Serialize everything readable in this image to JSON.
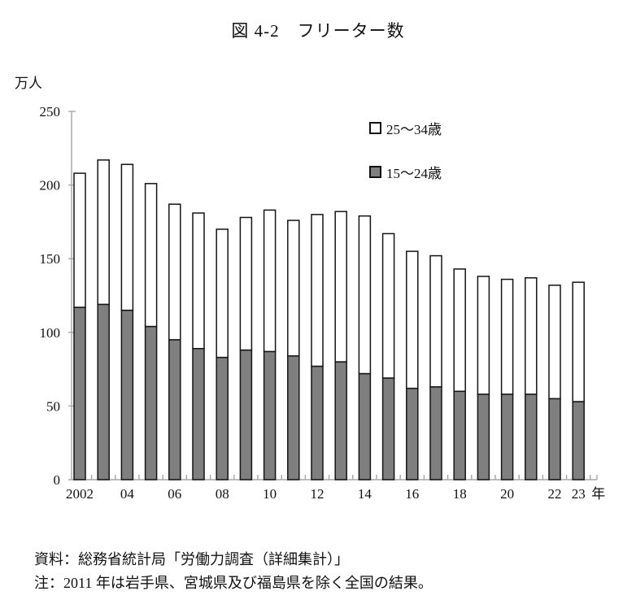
{
  "figure": {
    "title": "図 4-2　フリーター数",
    "y_axis_unit": "万人",
    "source_note": "資料：総務省統計局「労働力調査（詳細集計）」",
    "data_note": "注：2011 年は岩手県、宮城県及び福島県を除く全国の結果。"
  },
  "chart_data": {
    "type": "bar",
    "stacked": true,
    "title": "図 4-2　フリーター数",
    "ylabel": "万人",
    "ylim": [
      0,
      250
    ],
    "y_ticks": [
      0,
      50,
      100,
      150,
      200,
      250
    ],
    "grid": false,
    "legend_position": "top-right-inside",
    "years": [
      2002,
      2003,
      2004,
      2005,
      2006,
      2007,
      2008,
      2009,
      2010,
      2011,
      2012,
      2013,
      2014,
      2015,
      2016,
      2017,
      2018,
      2019,
      2020,
      2021,
      2022,
      2023
    ],
    "x_ticks": [
      {
        "label": "2002",
        "index": 0
      },
      {
        "label": "04",
        "index": 2
      },
      {
        "label": "06",
        "index": 4
      },
      {
        "label": "08",
        "index": 6
      },
      {
        "label": "10",
        "index": 8
      },
      {
        "label": "12",
        "index": 10
      },
      {
        "label": "14",
        "index": 12
      },
      {
        "label": "16",
        "index": 14
      },
      {
        "label": "18",
        "index": 16
      },
      {
        "label": "20",
        "index": 18
      },
      {
        "label": "22",
        "index": 20
      },
      {
        "label": "23",
        "index": 21
      }
    ],
    "x_axis_suffix": "年",
    "series": [
      {
        "name": "15～24歳",
        "color": "#7f7f7f",
        "values": [
          117,
          119,
          115,
          104,
          95,
          89,
          83,
          88,
          87,
          84,
          77,
          80,
          72,
          69,
          62,
          63,
          60,
          58,
          58,
          58,
          55,
          53
        ]
      },
      {
        "name": "25～34歳",
        "color": "#ffffff",
        "values": [
          91,
          98,
          99,
          97,
          92,
          92,
          87,
          90,
          96,
          92,
          103,
          102,
          107,
          98,
          93,
          89,
          83,
          80,
          78,
          79,
          77,
          81
        ]
      }
    ],
    "totals": [
      208,
      217,
      214,
      201,
      187,
      181,
      170,
      178,
      183,
      176,
      180,
      182,
      179,
      167,
      155,
      152,
      143,
      138,
      136,
      137,
      132,
      134
    ],
    "colors": {
      "bar_stroke": "#141414",
      "axis": "#a6a6a6",
      "text": "#111111"
    }
  }
}
